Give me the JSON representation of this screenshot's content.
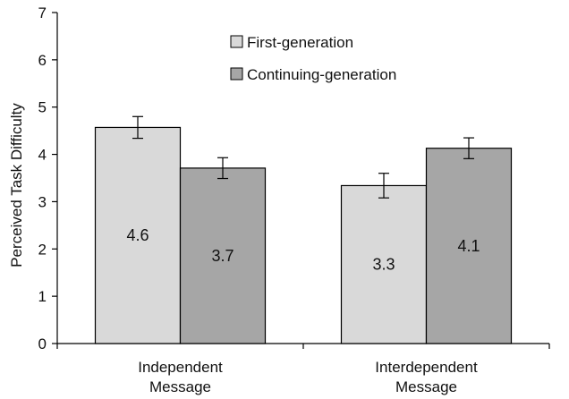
{
  "chart_data": {
    "type": "bar",
    "title": "",
    "xlabel": "",
    "ylabel": "Perceived Task Difficulty",
    "ylim": [
      0,
      7
    ],
    "yticks": [
      0,
      1,
      2,
      3,
      4,
      5,
      6,
      7
    ],
    "grid": false,
    "legend_position": "top-center",
    "categories": [
      [
        "Independent",
        "Message"
      ],
      [
        "Interdependent",
        "Message"
      ]
    ],
    "series": [
      {
        "name": "First-generation",
        "color": "#d9d9d9",
        "values": [
          4.57,
          3.34
        ],
        "labels": [
          "4.6",
          "3.3"
        ],
        "error": [
          0.23,
          0.26
        ]
      },
      {
        "name": "Continuing-generation",
        "color": "#a6a6a6",
        "values": [
          3.71,
          4.13
        ],
        "labels": [
          "3.7",
          "4.1"
        ],
        "error": [
          0.22,
          0.22
        ]
      }
    ]
  }
}
